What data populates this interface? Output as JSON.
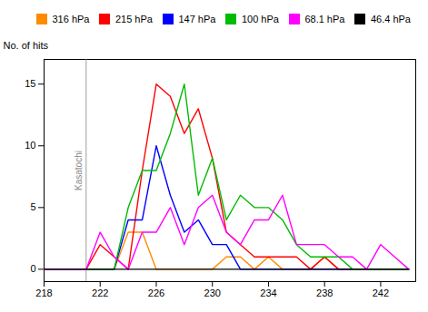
{
  "chart_data": {
    "type": "line",
    "x": [
      218,
      219,
      220,
      221,
      222,
      223,
      224,
      225,
      226,
      227,
      228,
      229,
      230,
      231,
      232,
      233,
      234,
      235,
      236,
      237,
      238,
      239,
      240,
      241,
      242,
      243,
      244
    ],
    "series": [
      {
        "name": "316 hPa",
        "color": "#FF8C00",
        "values": [
          0,
          0,
          0,
          0,
          0,
          0,
          3,
          3,
          0,
          0,
          0,
          0,
          0,
          1,
          1,
          0,
          1,
          0,
          0,
          0,
          1,
          0,
          0,
          0,
          0,
          0,
          0
        ]
      },
      {
        "name": "215 hPa",
        "color": "#FF0000",
        "values": [
          0,
          0,
          0,
          0,
          2,
          1,
          0,
          8,
          15,
          14,
          11,
          13,
          9,
          3,
          2,
          1,
          1,
          1,
          1,
          0,
          1,
          0,
          0,
          0,
          0,
          0,
          0
        ]
      },
      {
        "name": "147 hPa",
        "color": "#0000FF",
        "values": [
          0,
          0,
          0,
          0,
          0,
          0,
          4,
          4,
          10,
          6,
          3,
          4,
          2,
          2,
          0,
          0,
          0,
          0,
          0,
          0,
          0,
          0,
          0,
          0,
          0,
          0,
          0
        ]
      },
      {
        "name": "100 hPa",
        "color": "#00BB00",
        "values": [
          0,
          0,
          0,
          0,
          0,
          0,
          5,
          8,
          8,
          11,
          15,
          6,
          9,
          4,
          6,
          5,
          5,
          4,
          2,
          1,
          1,
          1,
          0,
          0,
          0,
          0,
          0
        ]
      },
      {
        "name": "68.1 hPa",
        "color": "#FF00FF",
        "values": [
          0,
          0,
          0,
          0,
          3,
          1,
          0,
          3,
          3,
          5,
          2,
          5,
          6,
          3,
          2,
          4,
          4,
          6,
          2,
          2,
          2,
          1,
          1,
          0,
          2,
          1,
          0
        ]
      },
      {
        "name": "46.4 hPa",
        "color": "#000000",
        "values": [
          0,
          0,
          0,
          0,
          0,
          0,
          0,
          0,
          0,
          0,
          0,
          0,
          0,
          0,
          0,
          0,
          0,
          0,
          0,
          0,
          0,
          0,
          0,
          0,
          0,
          0,
          0
        ]
      }
    ],
    "ylabel": "No. of hits",
    "xlim": [
      218,
      244.5
    ],
    "ylim": [
      -1,
      17
    ],
    "xticks": [
      218,
      222,
      226,
      230,
      234,
      238,
      242
    ],
    "yticks": [
      0,
      5,
      10,
      15
    ],
    "annotations": [
      {
        "x": 221.0,
        "text": "Kasatochi",
        "color": "#888888"
      }
    ],
    "legend": "upper right"
  }
}
